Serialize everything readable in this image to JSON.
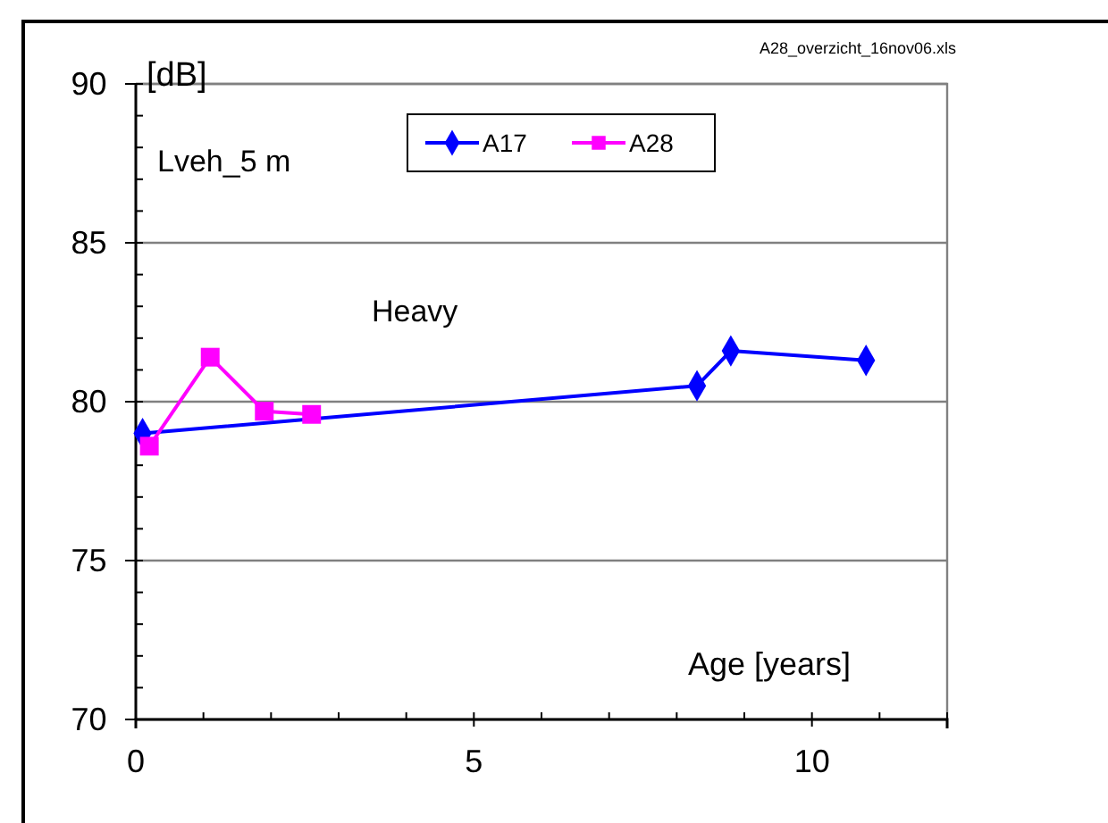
{
  "chart_data": {
    "type": "line",
    "ylabel": "[dB]",
    "xlabel": "Age  [years]",
    "annotations": [
      "Lveh_5 m",
      "Heavy",
      "A28_overzicht_16nov06.xls"
    ],
    "xlim": [
      0,
      12
    ],
    "ylim": [
      70,
      90
    ],
    "xticks": [
      0,
      {
        "value": 1,
        "label": null
      },
      {
        "value": 2,
        "label": null
      },
      {
        "value": 3,
        "label": null
      },
      {
        "value": 4,
        "label": null
      },
      5,
      {
        "value": 6,
        "label": null
      },
      {
        "value": 7,
        "label": null
      },
      {
        "value": 8,
        "label": null
      },
      {
        "value": 9,
        "label": null
      },
      10,
      {
        "value": 11,
        "label": null
      },
      {
        "value": 12,
        "label": null
      }
    ],
    "yticks": [
      70,
      {
        "value": 71,
        "label": null
      },
      {
        "value": 72,
        "label": null
      },
      {
        "value": 73,
        "label": null
      },
      {
        "value": 74,
        "label": null
      },
      75,
      {
        "value": 76,
        "label": null
      },
      {
        "value": 77,
        "label": null
      },
      {
        "value": 78,
        "label": null
      },
      {
        "value": 79,
        "label": null
      },
      80,
      {
        "value": 81,
        "label": null
      },
      {
        "value": 82,
        "label": null
      },
      {
        "value": 83,
        "label": null
      },
      {
        "value": 84,
        "label": null
      },
      85,
      {
        "value": 86,
        "label": null
      },
      {
        "value": 87,
        "label": null
      },
      {
        "value": 88,
        "label": null
      },
      {
        "value": 89,
        "label": null
      },
      90
    ],
    "grid": "y",
    "legend": "top",
    "series": [
      {
        "name": "A17",
        "color": "#0000ff",
        "marker": "diamond",
        "x": [
          0.1,
          8.3,
          8.8,
          10.8
        ],
        "values": [
          79.0,
          80.5,
          81.6,
          81.3
        ]
      },
      {
        "name": "A28",
        "color": "#ff00ff",
        "marker": "square",
        "x": [
          0.2,
          1.1,
          1.9,
          2.6
        ],
        "values": [
          78.6,
          81.4,
          79.7,
          79.6
        ]
      }
    ]
  }
}
